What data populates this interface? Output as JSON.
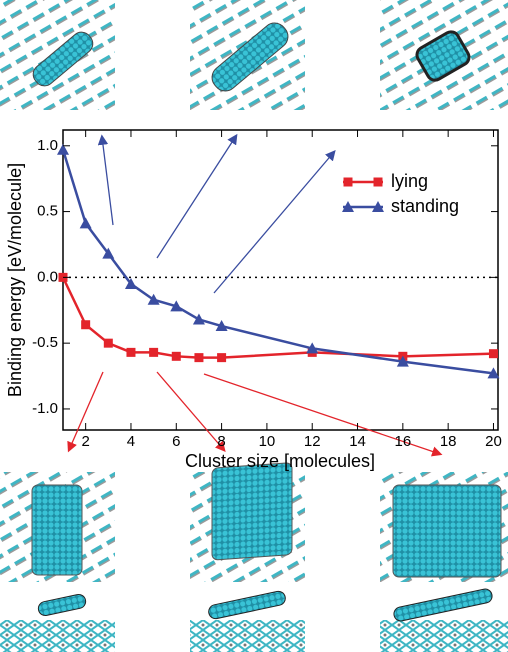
{
  "chart_data": {
    "type": "line",
    "x_label": "Cluster size [molecules]",
    "y_label": "Binding energy [eV/molecule]",
    "x": [
      1,
      2,
      3,
      4,
      5,
      6,
      7,
      8,
      12,
      16,
      20
    ],
    "series": [
      {
        "name": "lying",
        "color": "#e3242b",
        "marker": "square",
        "values": [
          0,
          -0.36,
          -0.5,
          -0.57,
          -0.57,
          -0.6,
          -0.61,
          -0.61,
          -0.57,
          -0.6,
          -0.58
        ]
      },
      {
        "name": "standing",
        "color": "#3a4da0",
        "marker": "triangle",
        "values": [
          0.97,
          0.41,
          0.18,
          -0.05,
          -0.17,
          -0.22,
          -0.32,
          -0.37,
          -0.54,
          -0.64,
          -0.73
        ]
      }
    ],
    "xlim": [
      1,
      20.2
    ],
    "ylim": [
      -1.16,
      1.12
    ],
    "xticks": [
      2,
      4,
      6,
      8,
      10,
      12,
      14,
      16,
      18,
      20
    ],
    "yticks": [
      {
        "value": -1.0,
        "label": "-1.0"
      },
      -0.5,
      {
        "value": 0.0,
        "label": "0.0"
      },
      0.5,
      {
        "value": 1.0,
        "label": "1.0"
      }
    ],
    "zero_line": true,
    "legend": "upper right"
  }
}
